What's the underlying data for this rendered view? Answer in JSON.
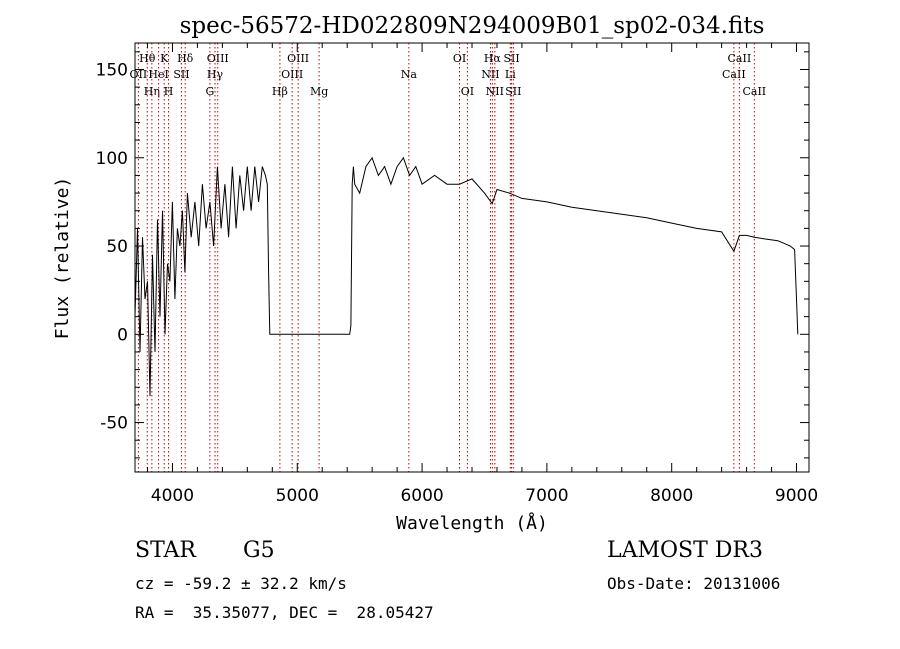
{
  "chart_data": {
    "type": "line",
    "title": "spec-56572-HD022809N294009B01_sp02-034.fits",
    "xlabel": "Wavelength (Å)",
    "ylabel": "Flux (relative)",
    "xlim": [
      3700,
      9100
    ],
    "ylim": [
      -78,
      165
    ],
    "xticks": [
      4000,
      5000,
      6000,
      7000,
      8000,
      9000
    ],
    "yticks": [
      -50,
      0,
      50,
      100,
      150
    ],
    "grid": false,
    "series": [
      {
        "name": "flux",
        "x": [
          3700,
          3720,
          3740,
          3760,
          3780,
          3800,
          3820,
          3840,
          3860,
          3880,
          3900,
          3920,
          3940,
          3960,
          3980,
          4000,
          4020,
          4040,
          4060,
          4080,
          4100,
          4120,
          4150,
          4180,
          4210,
          4240,
          4270,
          4300,
          4330,
          4360,
          4390,
          4420,
          4450,
          4480,
          4510,
          4540,
          4570,
          4600,
          4630,
          4660,
          4690,
          4720,
          4745,
          4760,
          4770,
          4780,
          4800,
          5000,
          5200,
          5420,
          5430,
          5440,
          5450,
          5460,
          5500,
          5550,
          5600,
          5650,
          5700,
          5750,
          5800,
          5850,
          5900,
          5950,
          6000,
          6100,
          6200,
          6300,
          6400,
          6500,
          6562,
          6600,
          6700,
          6800,
          6900,
          7000,
          7200,
          7400,
          7600,
          7800,
          8000,
          8200,
          8400,
          8498,
          8542,
          8600,
          8662,
          8750,
          8850,
          8950,
          8985,
          9000,
          9010
        ],
        "values": [
          10,
          60,
          -10,
          55,
          20,
          30,
          -35,
          45,
          -10,
          65,
          10,
          70,
          0,
          40,
          30,
          75,
          20,
          60,
          50,
          70,
          35,
          80,
          55,
          75,
          50,
          85,
          60,
          75,
          50,
          95,
          60,
          85,
          55,
          95,
          60,
          90,
          70,
          95,
          70,
          95,
          75,
          95,
          90,
          85,
          35,
          0,
          0,
          0,
          0,
          0,
          5,
          85,
          95,
          85,
          80,
          95,
          100,
          90,
          95,
          85,
          95,
          100,
          90,
          95,
          85,
          90,
          85,
          85,
          88,
          80,
          74,
          82,
          80,
          77,
          76,
          75,
          72,
          70,
          68,
          66,
          63,
          60,
          58,
          47,
          56,
          56,
          55,
          54,
          53,
          50,
          48,
          20,
          0
        ]
      }
    ],
    "lines": [
      {
        "x": 3798,
        "label": "Hθ",
        "row": 1
      },
      {
        "x": 3727,
        "label": "OII",
        "row": 2
      },
      {
        "x": 3835,
        "label": "Hη",
        "row": 3
      },
      {
        "x": 3889,
        "label": "HeI",
        "row": 2
      },
      {
        "x": 3934,
        "label": "K",
        "row": 1
      },
      {
        "x": 3969,
        "label": "H",
        "row": 3
      },
      {
        "x": 4072,
        "label": "SII",
        "row": 2
      },
      {
        "x": 4102,
        "label": "Hδ",
        "row": 1
      },
      {
        "x": 4300,
        "label": "G",
        "row": 3
      },
      {
        "x": 4341,
        "label": "Hγ",
        "row": 2
      },
      {
        "x": 4363,
        "label": "OIII",
        "row": 1
      },
      {
        "x": 4861,
        "label": "Hβ",
        "row": 3
      },
      {
        "x": 4959,
        "label": "OIII",
        "row": 2
      },
      {
        "x": 5007,
        "label": "OIII",
        "row": 1
      },
      {
        "x": 5175,
        "label": "Mg",
        "row": 3
      },
      {
        "x": 5894,
        "label": "Na",
        "row": 2
      },
      {
        "x": 6300,
        "label": "OI",
        "row": 1
      },
      {
        "x": 6363,
        "label": "OI",
        "row": 3
      },
      {
        "x": 6548,
        "label": "NII",
        "row": 2
      },
      {
        "x": 6563,
        "label": "Hα",
        "row": 1
      },
      {
        "x": 6583,
        "label": "NII",
        "row": 3
      },
      {
        "x": 6707,
        "label": "Li",
        "row": 2
      },
      {
        "x": 6717,
        "label": "SII",
        "row": 1
      },
      {
        "x": 6731,
        "label": "SII",
        "row": 3
      },
      {
        "x": 8498,
        "label": "CaII",
        "row": 2
      },
      {
        "x": 8542,
        "label": "CaII",
        "row": 1
      },
      {
        "x": 8662,
        "label": "CaII",
        "row": 3
      }
    ]
  },
  "info": {
    "object_class": "STAR",
    "subclass": "G5",
    "survey": "LAMOST DR3",
    "redshift_line": "cz = -59.2 ± 32.2 km/s",
    "obs_date_line": "Obs-Date: 20131006",
    "coords_line": "RA =  35.35077, DEC =  28.05427"
  }
}
